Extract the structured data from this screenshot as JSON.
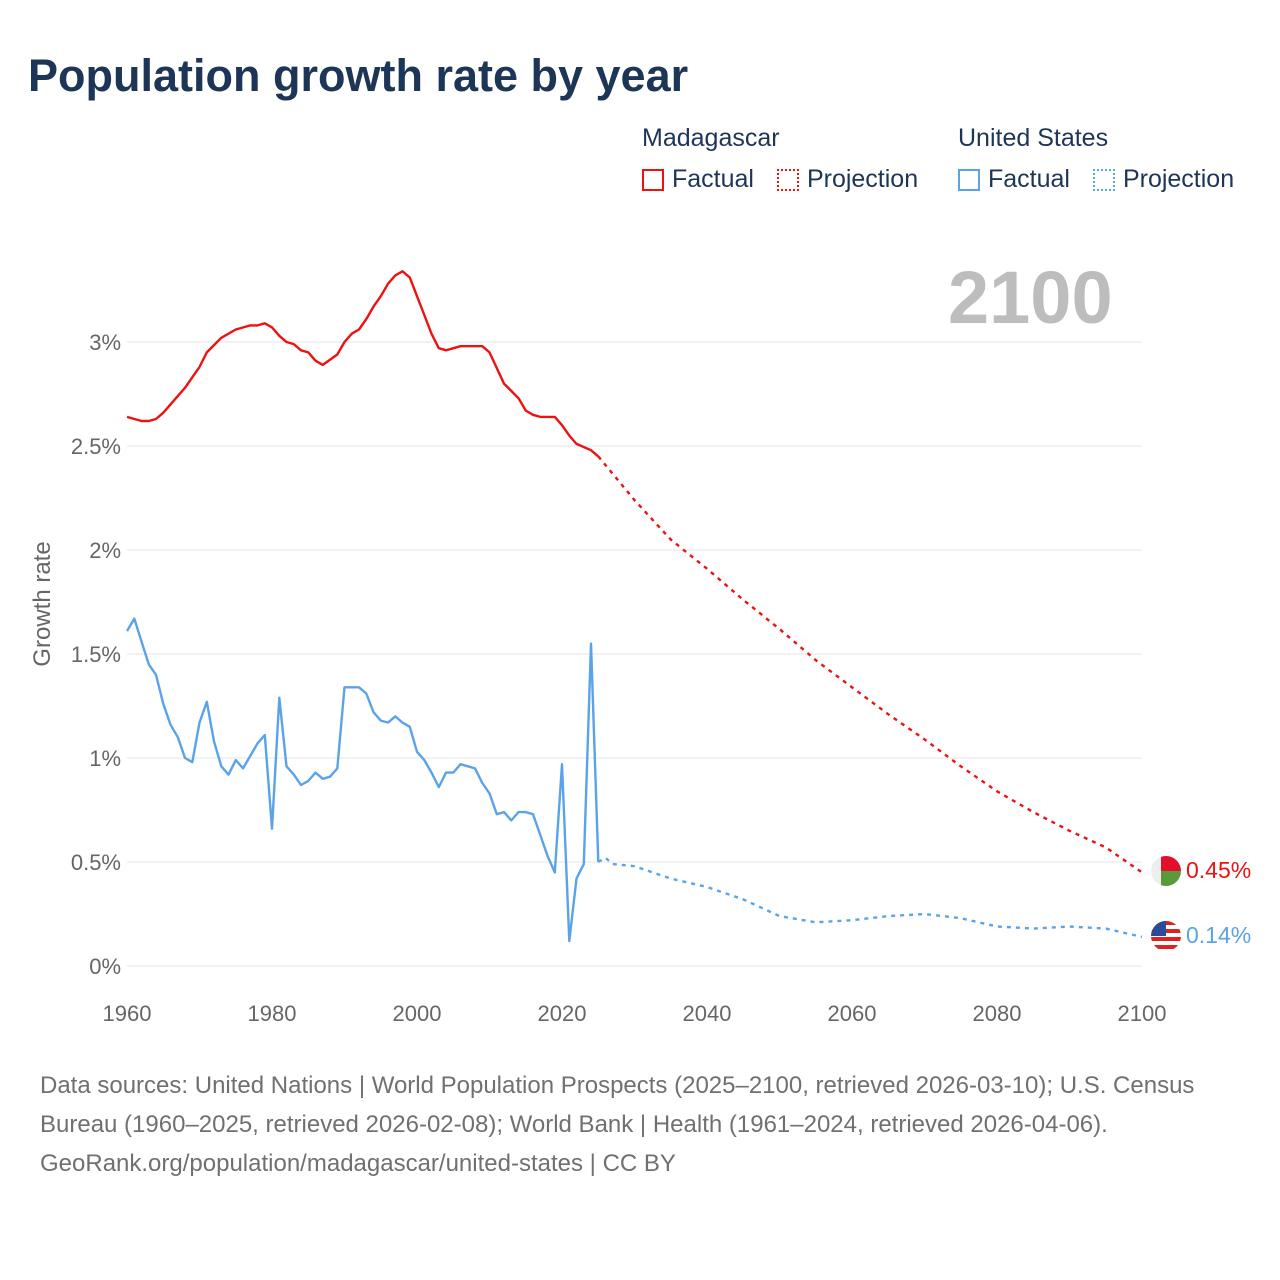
{
  "chart_data": {
    "type": "line",
    "title": "Population growth rate by year",
    "ylabel": "Growth rate",
    "xlabel": "",
    "xlim": [
      1960,
      2100
    ],
    "ylim": [
      0,
      3.4
    ],
    "x_ticks": [
      "1960",
      "1980",
      "2000",
      "2020",
      "2040",
      "2060",
      "2080",
      "2100"
    ],
    "x_tick_values": [
      1960,
      1980,
      2000,
      2020,
      2040,
      2060,
      2080,
      2100
    ],
    "y_ticks": [
      "0%",
      "0.5%",
      "1%",
      "1.5%",
      "2%",
      "2.5%",
      "3%"
    ],
    "y_tick_values": [
      0,
      0.5,
      1,
      1.5,
      2,
      2.5,
      3
    ],
    "current_year": "2100",
    "grid": true,
    "legend_placement": "top-right",
    "series": [
      {
        "name": "Madagascar",
        "color": "#ee1111",
        "end_label": "0.45%",
        "factual": {
          "x": [
            1960,
            1962,
            1963,
            1964,
            1965,
            1968,
            1970,
            1971,
            1973,
            1975,
            1977,
            1978,
            1979,
            1980,
            1981,
            1982,
            1983,
            1984,
            1985,
            1986,
            1987,
            1989,
            1990,
            1991,
            1992,
            1993,
            1994,
            1995,
            1996,
            1997,
            1998,
            1999,
            2000,
            2001,
            2002,
            2003,
            2004,
            2006,
            2009,
            2010,
            2012,
            2014,
            2015,
            2016,
            2017,
            2019,
            2020,
            2021,
            2022,
            2024,
            2025
          ],
          "y": [
            2.64,
            2.62,
            2.62,
            2.63,
            2.66,
            2.78,
            2.88,
            2.95,
            3.02,
            3.06,
            3.08,
            3.08,
            3.09,
            3.07,
            3.03,
            3.0,
            2.99,
            2.96,
            2.95,
            2.91,
            2.89,
            2.94,
            3.0,
            3.04,
            3.06,
            3.11,
            3.17,
            3.22,
            3.28,
            3.32,
            3.34,
            3.31,
            3.22,
            3.13,
            3.04,
            2.97,
            2.96,
            2.98,
            2.98,
            2.95,
            2.8,
            2.73,
            2.67,
            2.65,
            2.64,
            2.64,
            2.6,
            2.55,
            2.51,
            2.48,
            2.45
          ]
        },
        "projection": {
          "x": [
            2025,
            2030,
            2035,
            2040,
            2045,
            2050,
            2055,
            2060,
            2065,
            2070,
            2075,
            2080,
            2085,
            2090,
            2095,
            2100
          ],
          "y": [
            2.45,
            2.24,
            2.05,
            1.91,
            1.76,
            1.62,
            1.47,
            1.34,
            1.21,
            1.09,
            0.96,
            0.84,
            0.74,
            0.65,
            0.57,
            0.45
          ]
        }
      },
      {
        "name": "United States",
        "color": "#5ba3e8",
        "end_label": "0.14%",
        "factual": {
          "x": [
            1960,
            1961,
            1962,
            1963,
            1964,
            1965,
            1966,
            1967,
            1968,
            1969,
            1970,
            1971,
            1972,
            1973,
            1974,
            1975,
            1976,
            1977,
            1978,
            1979,
            1980,
            1981,
            1982,
            1983,
            1984,
            1985,
            1986,
            1987,
            1988,
            1989,
            1990,
            1991,
            1992,
            1993,
            1994,
            1995,
            1996,
            1997,
            1998,
            1999,
            2000,
            2001,
            2002,
            2003,
            2004,
            2005,
            2006,
            2007,
            2008,
            2009,
            2010,
            2011,
            2012,
            2013,
            2014,
            2015,
            2016,
            2017,
            2018,
            2019,
            2020,
            2021,
            2022,
            2023,
            2024,
            2025
          ],
          "y": [
            1.61,
            1.67,
            1.56,
            1.45,
            1.4,
            1.26,
            1.16,
            1.1,
            1.0,
            0.98,
            1.17,
            1.27,
            1.08,
            0.96,
            0.92,
            0.99,
            0.95,
            1.01,
            1.07,
            1.11,
            0.66,
            1.29,
            0.96,
            0.92,
            0.87,
            0.89,
            0.93,
            0.9,
            0.91,
            0.95,
            1.34,
            1.34,
            1.34,
            1.31,
            1.22,
            1.18,
            1.17,
            1.2,
            1.17,
            1.15,
            1.03,
            0.99,
            0.93,
            0.86,
            0.93,
            0.93,
            0.97,
            0.96,
            0.95,
            0.88,
            0.83,
            0.73,
            0.74,
            0.7,
            0.74,
            0.74,
            0.73,
            0.63,
            0.53,
            0.45,
            0.97,
            0.12,
            0.42,
            0.49,
            1.55,
            0.5
          ]
        },
        "projection": {
          "x": [
            2025,
            2026,
            2027,
            2030,
            2035,
            2040,
            2045,
            2050,
            2055,
            2060,
            2065,
            2070,
            2075,
            2080,
            2085,
            2090,
            2095,
            2100
          ],
          "y": [
            0.5,
            0.52,
            0.49,
            0.48,
            0.42,
            0.38,
            0.32,
            0.24,
            0.21,
            0.22,
            0.24,
            0.25,
            0.23,
            0.19,
            0.18,
            0.19,
            0.18,
            0.14
          ]
        }
      }
    ]
  },
  "legend": {
    "groups": [
      {
        "name": "Madagascar",
        "factual": "Factual",
        "projection": "Projection"
      },
      {
        "name": "United States",
        "factual": "Factual",
        "projection": "Projection"
      }
    ]
  },
  "footer": {
    "sources": "Data sources: United Nations | World Population Prospects (2025–2100, retrieved 2026-03-10); U.S. Census Bureau (1960–2025, retrieved 2026-02-08); World Bank | Health (1961–2024, retrieved 2026-04-06).",
    "attribution": "GeoRank.org/population/madagascar/united-states | CC BY"
  }
}
